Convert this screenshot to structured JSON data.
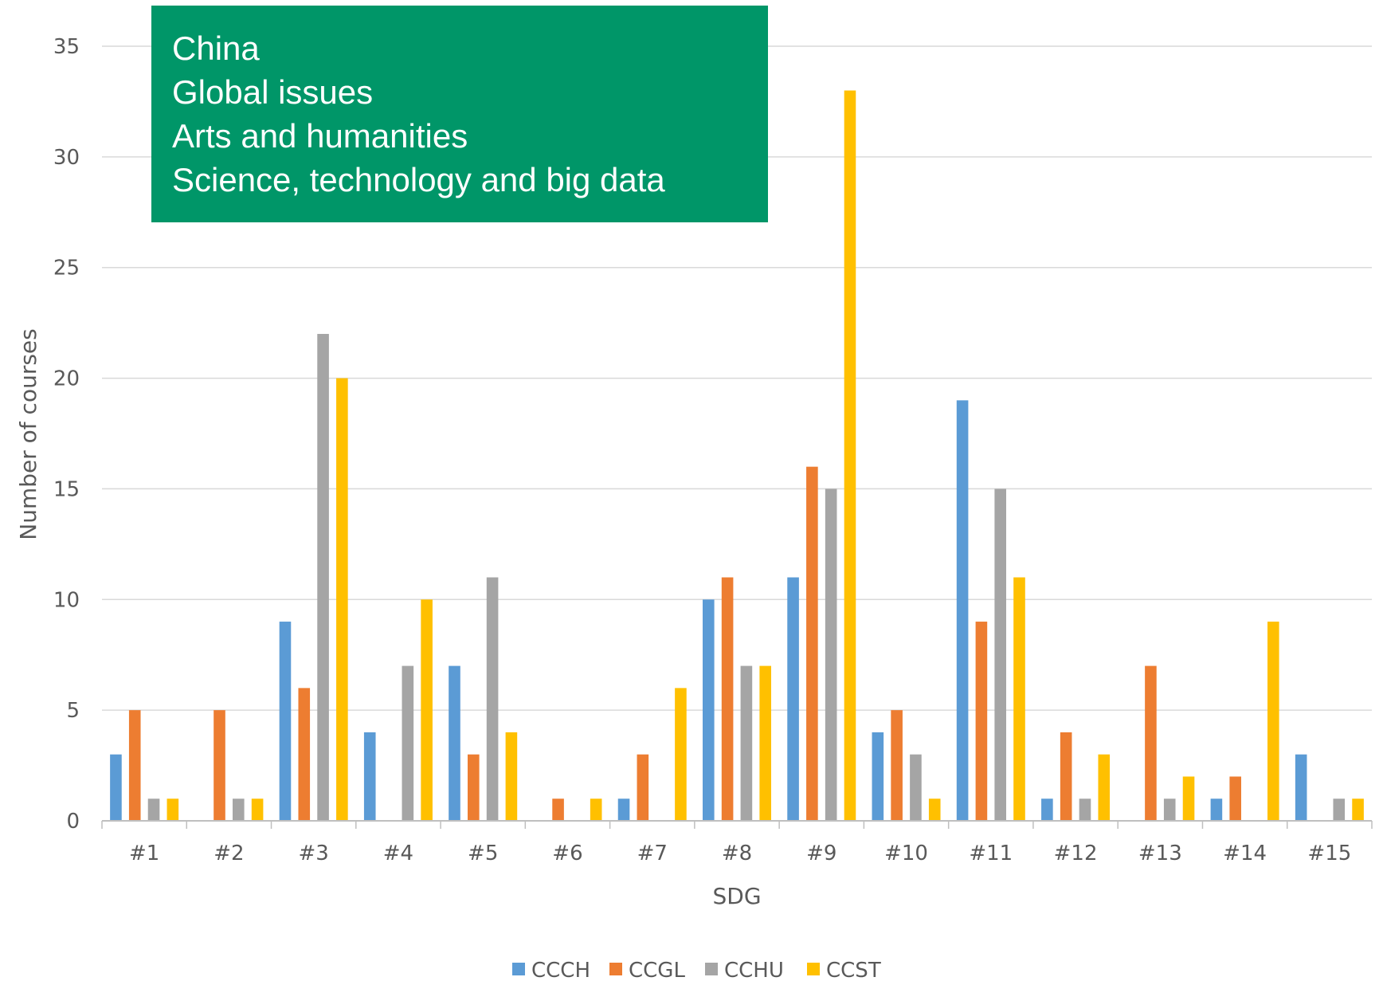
{
  "overlay": {
    "lines": [
      "China",
      "Global issues",
      "Arts and humanities",
      "Science, technology and big data"
    ]
  },
  "chart_data": {
    "type": "bar",
    "xlabel": "SDG",
    "ylabel": "Number of courses",
    "ylim": [
      0,
      35
    ],
    "yticks": [
      0,
      5,
      10,
      15,
      20,
      25,
      30,
      35
    ],
    "grid": true,
    "legend_position": "bottom",
    "categories": [
      "#1",
      "#2",
      "#3",
      "#4",
      "#5",
      "#6",
      "#7",
      "#8",
      "#9",
      "#10",
      "#11",
      "#12",
      "#13",
      "#14",
      "#15"
    ],
    "series": [
      {
        "name": "CCCH",
        "color": "#5B9BD5",
        "values": [
          3,
          0,
          9,
          4,
          7,
          0,
          1,
          10,
          11,
          4,
          19,
          1,
          0,
          1,
          3
        ]
      },
      {
        "name": "CCGL",
        "color": "#ED7D31",
        "values": [
          5,
          5,
          6,
          0,
          3,
          1,
          3,
          11,
          16,
          5,
          9,
          4,
          7,
          2,
          0
        ]
      },
      {
        "name": "CCHU",
        "color": "#A5A5A5",
        "values": [
          1,
          1,
          22,
          7,
          11,
          0,
          0,
          7,
          15,
          3,
          15,
          1,
          1,
          0,
          1
        ]
      },
      {
        "name": "CCST",
        "color": "#FFC000",
        "values": [
          1,
          1,
          20,
          10,
          4,
          1,
          6,
          7,
          33,
          1,
          11,
          3,
          2,
          9,
          1
        ]
      }
    ]
  }
}
